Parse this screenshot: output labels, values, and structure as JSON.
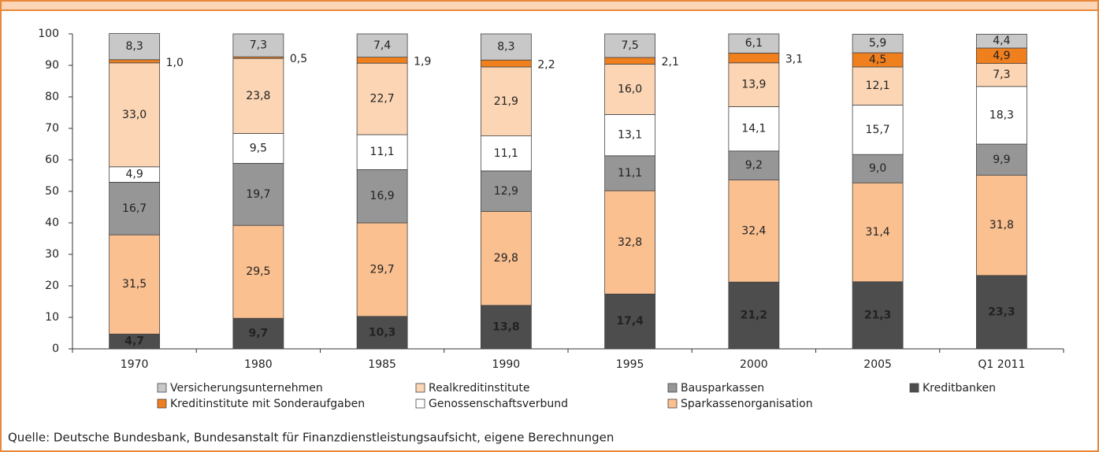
{
  "chart_data": {
    "type": "stacked_bar",
    "categories": [
      "1970",
      "1980",
      "1985",
      "1990",
      "1995",
      "2000",
      "2005",
      "Q1 2011"
    ],
    "series": [
      {
        "name": "Kreditbanken",
        "color": "#4d4d4d",
        "values": [
          4.7,
          9.7,
          10.3,
          13.8,
          17.4,
          21.2,
          21.3,
          23.3
        ],
        "value_labels": [
          "4,7",
          "9,7",
          "10,3",
          "13,8",
          "17,4",
          "21,2",
          "21,3",
          "23,3"
        ]
      },
      {
        "name": "Sparkassenorganisation",
        "color": "#fac090",
        "values": [
          31.5,
          29.5,
          29.7,
          29.8,
          32.8,
          32.4,
          31.4,
          31.8
        ],
        "value_labels": [
          "31,5",
          "29,5",
          "29,7",
          "29,8",
          "32,8",
          "32,4",
          "31,4",
          "31,8"
        ]
      },
      {
        "name": "Bausparkassen",
        "color": "#969696",
        "values": [
          16.7,
          19.7,
          16.9,
          12.9,
          11.1,
          9.2,
          9.0,
          9.9
        ],
        "value_labels": [
          "16,7",
          "19,7",
          "16,9",
          "12,9",
          "11,1",
          "9,2",
          "9,0",
          "9,9"
        ]
      },
      {
        "name": "Genossenschaftsverbund",
        "color": "#ffffff",
        "values": [
          4.9,
          9.5,
          11.1,
          11.1,
          13.1,
          14.1,
          15.7,
          18.3
        ],
        "value_labels": [
          "4,9",
          "9,5",
          "11,1",
          "11,1",
          "13,1",
          "14,1",
          "15,7",
          "18,3"
        ]
      },
      {
        "name": "Realkreditinstitute",
        "color": "#fcd5b4",
        "values": [
          33.0,
          23.8,
          22.7,
          21.9,
          16.0,
          13.9,
          12.1,
          7.3
        ],
        "value_labels": [
          "33,0",
          "23,8",
          "22,7",
          "21,9",
          "16,0",
          "13,9",
          "12,1",
          "7,3"
        ]
      },
      {
        "name": "Kreditinstitute mit Sonderaufgaben",
        "color": "#f07f1e",
        "values": [
          1.0,
          0.5,
          1.9,
          2.2,
          2.1,
          3.1,
          4.5,
          4.9
        ],
        "value_labels": [
          "1,0",
          "0,5",
          "1,9",
          "2,2",
          "2,1",
          "3,1",
          "4,5",
          "4,9"
        ]
      },
      {
        "name": "Versicherungsunternehmen",
        "color": "#c8c8c8",
        "values": [
          8.3,
          7.3,
          7.4,
          8.3,
          7.5,
          6.1,
          5.9,
          4.4
        ],
        "value_labels": [
          "8,3",
          "7,3",
          "7,4",
          "8,3",
          "7,5",
          "6,1",
          "5,9",
          "4,4"
        ]
      }
    ],
    "ylim": [
      0,
      100
    ],
    "yticks": [
      0,
      10,
      20,
      30,
      40,
      50,
      60,
      70,
      80,
      90,
      100
    ],
    "source": "Quelle: Deutsche Bundesbank, Bundesanstalt für Finanzdienstleistungsaufsicht, eigene Berechnungen"
  }
}
